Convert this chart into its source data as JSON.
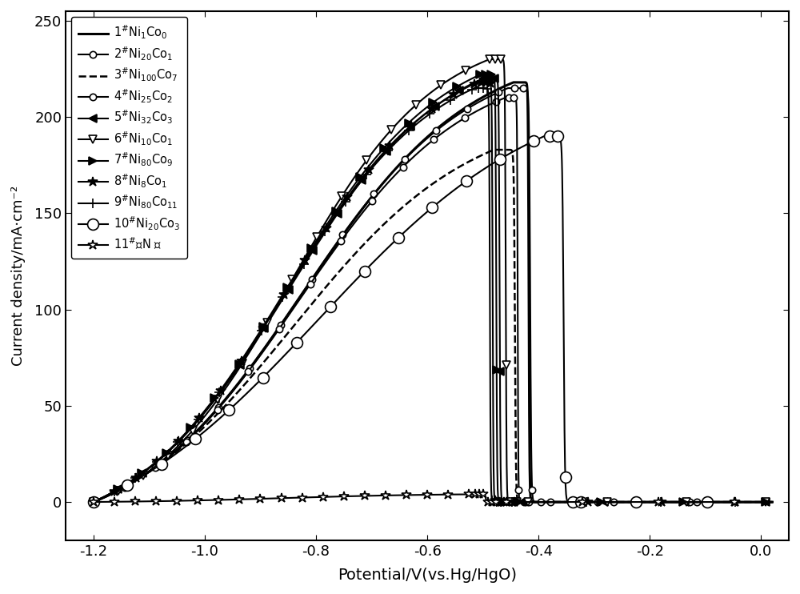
{
  "xlabel": "Potential/V(vs.Hg/HgO)",
  "ylabel": "Current density/mA·cm⁻²",
  "xlim": [
    -1.25,
    0.05
  ],
  "ylim": [
    -20,
    255
  ],
  "xticks": [
    -1.2,
    -1.0,
    -0.8,
    -0.6,
    -0.4,
    -0.2,
    0.0
  ],
  "yticks": [
    0,
    50,
    100,
    150,
    200,
    250
  ],
  "series": [
    {
      "id": 0,
      "label": "1$^{\\#}$Ni$_1$Co$_0$",
      "linestyle": "-",
      "linewidth": 2.2,
      "marker": "none",
      "markersize": 0,
      "markerfacecolor": "black",
      "markeredgecolor": "black",
      "peak_x": -0.445,
      "peak_y": 218,
      "drop_x": -0.39,
      "rise_start": -1.2,
      "rise_k": 5.0,
      "drop_k": 80
    },
    {
      "id": 1,
      "label": "2$^{\\#}$Ni$_{20}$Co$_1$",
      "linestyle": "-",
      "linewidth": 1.5,
      "marker": "o",
      "markersize": 6,
      "markerfacecolor": "white",
      "markeredgecolor": "black",
      "peak_x": -0.455,
      "peak_y": 215,
      "drop_x": -0.375,
      "rise_start": -1.2,
      "rise_k": 5.0,
      "drop_k": 80
    },
    {
      "id": 2,
      "label": "3$^{\\#}$Ni$_{100}$Co$_7$",
      "linestyle": "--",
      "linewidth": 1.8,
      "marker": "none",
      "markersize": 0,
      "markerfacecolor": "black",
      "markeredgecolor": "black",
      "peak_x": -0.48,
      "peak_y": 183,
      "drop_x": -0.405,
      "rise_start": -1.2,
      "rise_k": 4.5,
      "drop_k": 80
    },
    {
      "id": 3,
      "label": "4$^{\\#}$Ni$_{25}$Co$_2$",
      "linestyle": "-",
      "linewidth": 1.5,
      "marker": "o",
      "markersize": 6,
      "markerfacecolor": "white",
      "markeredgecolor": "black",
      "peak_x": -0.46,
      "peak_y": 210,
      "drop_x": -0.415,
      "rise_start": -1.2,
      "rise_k": 5.0,
      "drop_k": 80
    },
    {
      "id": 4,
      "label": "5$^{\\#}$Ni$_{32}$Co$_3$",
      "linestyle": "-",
      "linewidth": 1.5,
      "marker": "<",
      "markersize": 7,
      "markerfacecolor": "black",
      "markeredgecolor": "black",
      "peak_x": -0.5,
      "peak_y": 220,
      "drop_x": -0.44,
      "rise_start": -1.2,
      "rise_k": 5.0,
      "drop_k": 80
    },
    {
      "id": 5,
      "label": "6$^{\\#}$Ni$_{10}$Co$_1$",
      "linestyle": "-",
      "linewidth": 1.5,
      "marker": "v",
      "markersize": 7,
      "markerfacecolor": "white",
      "markeredgecolor": "black",
      "peak_x": -0.488,
      "peak_y": 230,
      "drop_x": -0.43,
      "rise_start": -1.2,
      "rise_k": 5.5,
      "drop_k": 80
    },
    {
      "id": 6,
      "label": "7$^{\\#}$Ni$_{80}$Co$_9$",
      "linestyle": "-",
      "linewidth": 1.5,
      "marker": ">",
      "markersize": 7,
      "markerfacecolor": "black",
      "markeredgecolor": "black",
      "peak_x": -0.505,
      "peak_y": 222,
      "drop_x": -0.447,
      "rise_start": -1.2,
      "rise_k": 5.0,
      "drop_k": 80
    },
    {
      "id": 7,
      "label": "8$^{\\#}$Ni$_8$Co$_1$",
      "linestyle": "-",
      "linewidth": 1.5,
      "marker": "*",
      "markersize": 9,
      "markerfacecolor": "black",
      "markeredgecolor": "black",
      "peak_x": -0.51,
      "peak_y": 218,
      "drop_x": -0.455,
      "rise_start": -1.2,
      "rise_k": 5.0,
      "drop_k": 80
    },
    {
      "id": 8,
      "label": "9$^{\\#}$Ni$_{80}$Co$_{11}$",
      "linestyle": "-",
      "linewidth": 1.5,
      "marker": "+",
      "markersize": 8,
      "markerfacecolor": "black",
      "markeredgecolor": "black",
      "peak_x": -0.515,
      "peak_y": 215,
      "drop_x": -0.46,
      "rise_start": -1.2,
      "rise_k": 5.0,
      "drop_k": 80
    },
    {
      "id": 9,
      "label": "10$^{\\#}$Ni$_{20}$Co$_3$",
      "linestyle": "-",
      "linewidth": 1.5,
      "marker": "o",
      "markersize": 10,
      "markerfacecolor": "white",
      "markeredgecolor": "black",
      "peak_x": -0.39,
      "peak_y": 190,
      "drop_x": -0.32,
      "rise_start": -1.2,
      "rise_k": 4.0,
      "drop_k": 60
    },
    {
      "id": 10,
      "label": "11$^{\\#}$纯N 片",
      "linestyle": "-",
      "linewidth": 1.5,
      "marker": "*",
      "markersize": 9,
      "markerfacecolor": "white",
      "markeredgecolor": "black",
      "peak_x": -0.52,
      "peak_y": 4,
      "drop_x": -0.47,
      "rise_start": -1.2,
      "rise_k": 5.0,
      "drop_k": 80
    }
  ]
}
